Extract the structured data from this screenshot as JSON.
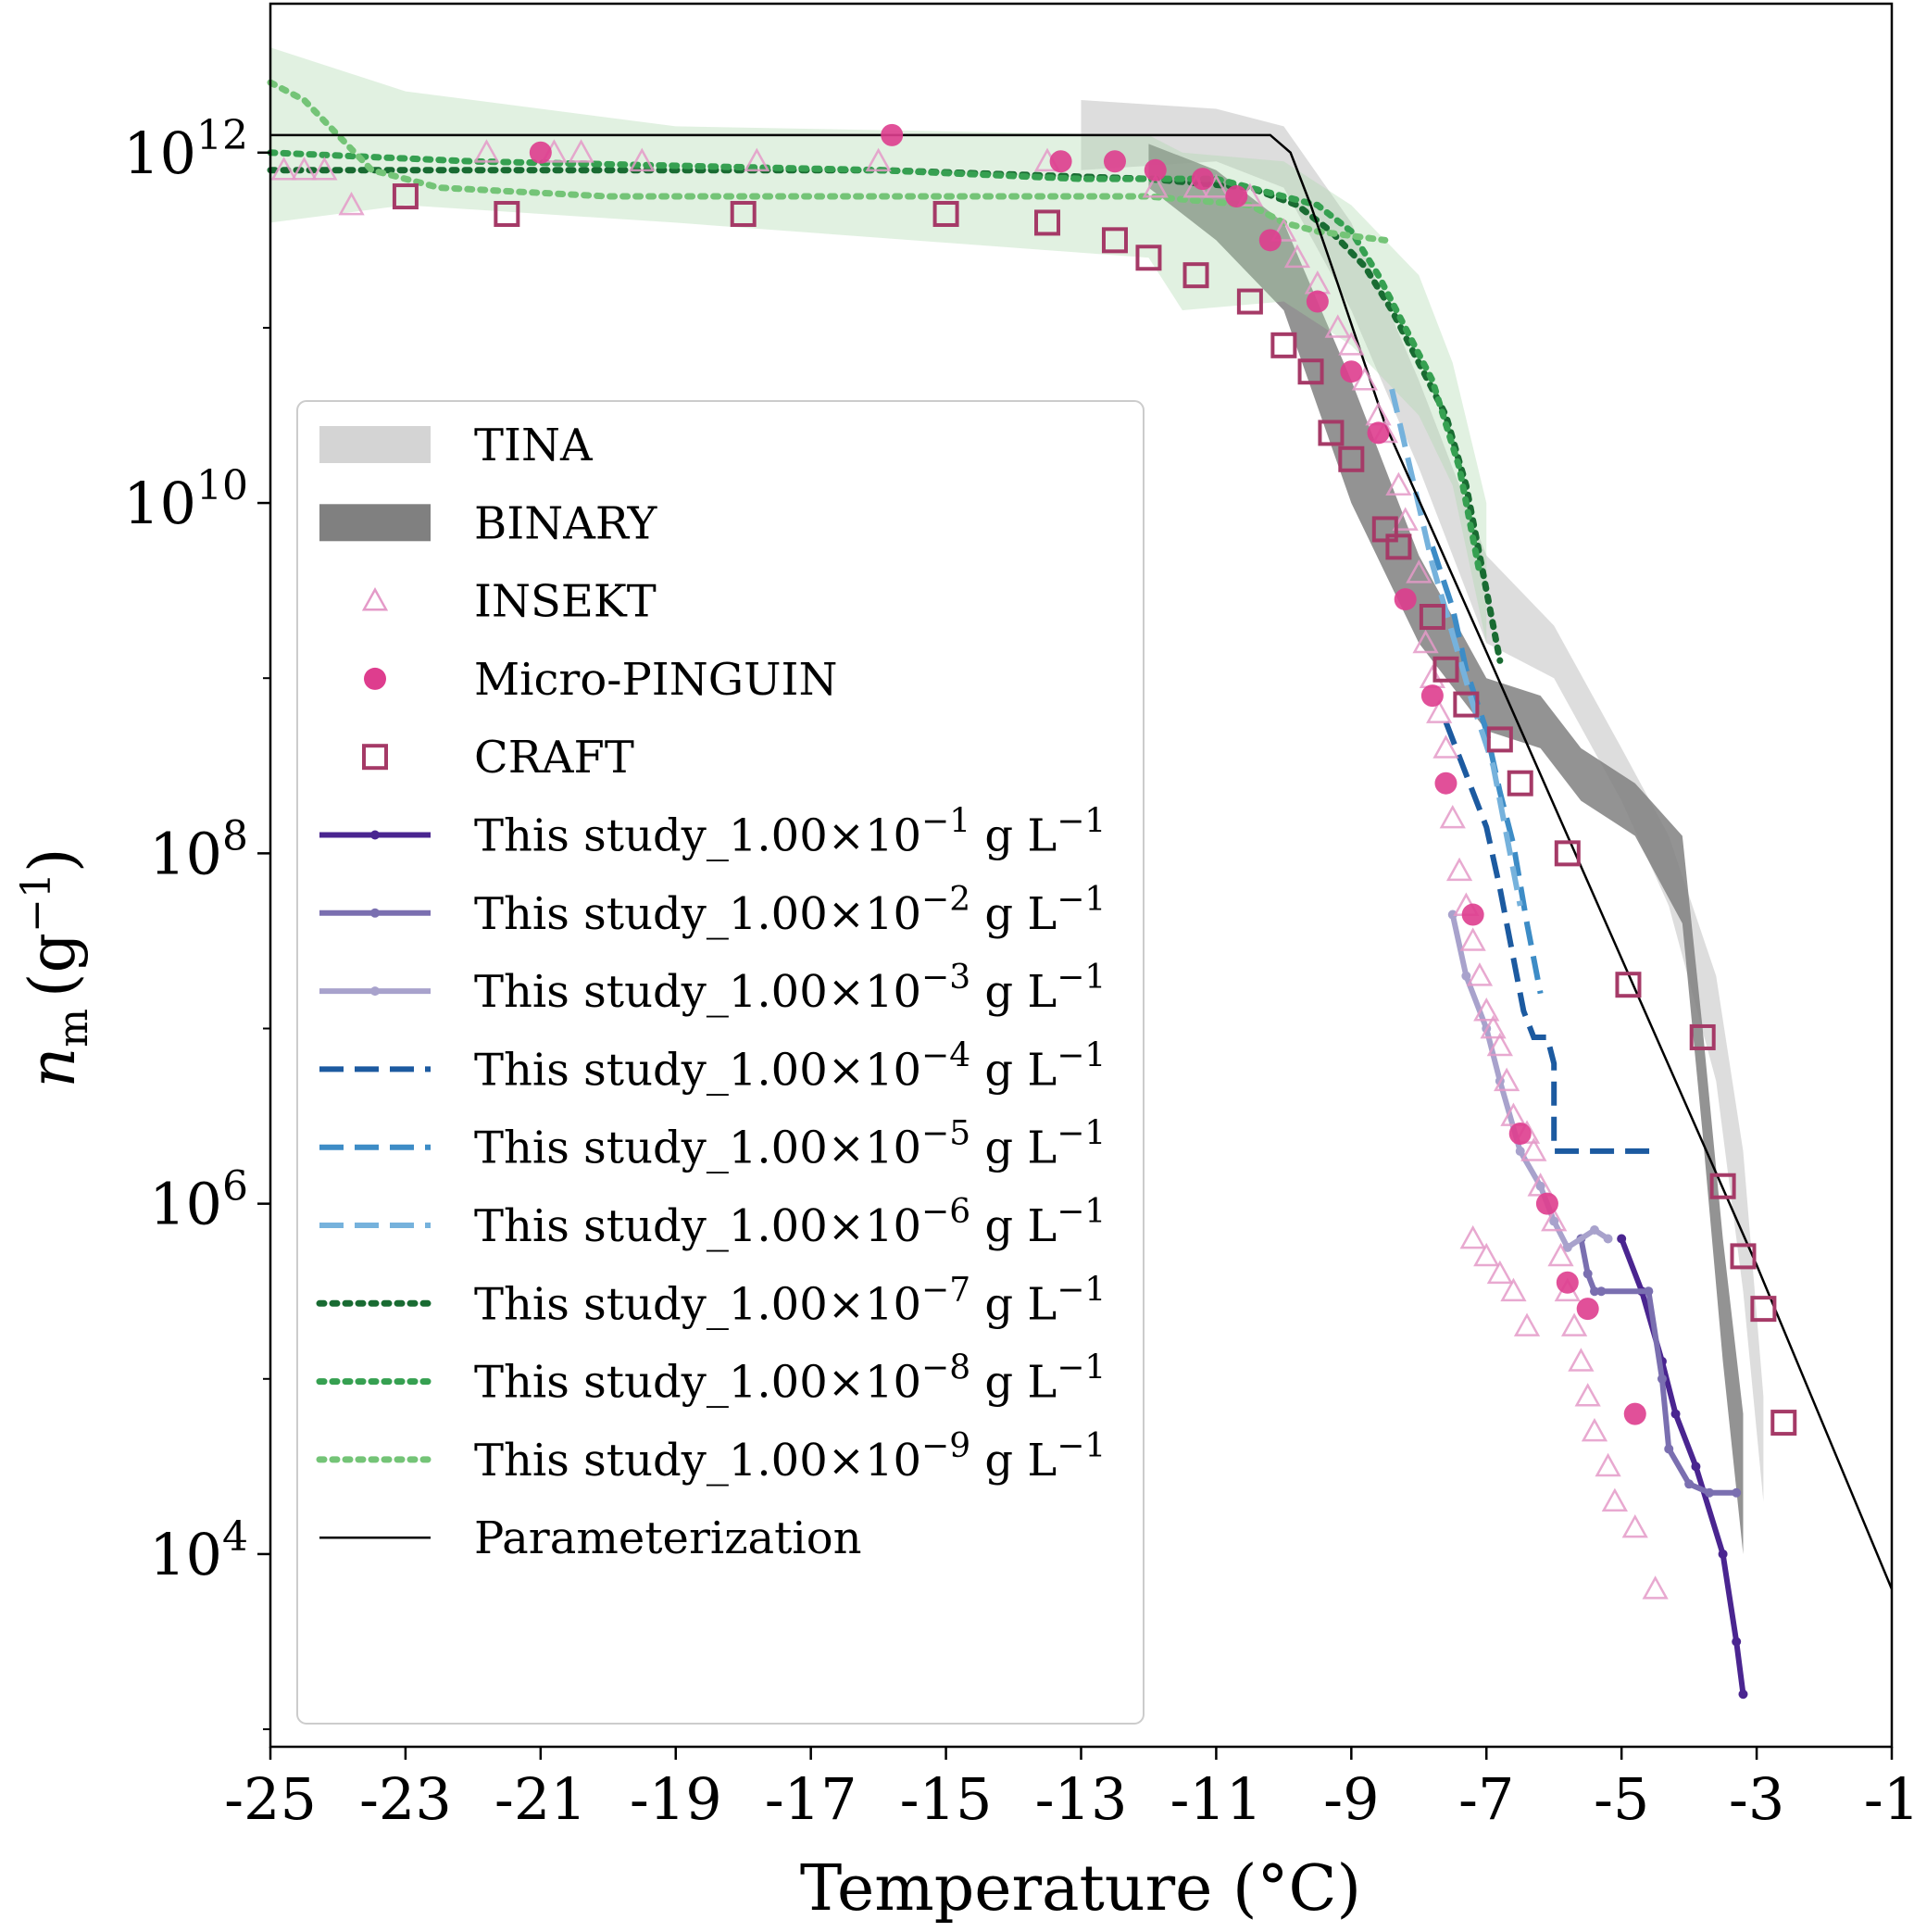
{
  "chart_data": {
    "type": "scatter",
    "xlabel": "Temperature (°C)",
    "ylabel": {
      "main": "n",
      "sub": "m",
      "unit_base": "(g",
      "unit_exp": "−1",
      "unit_close": ")"
    },
    "x_ticks": [
      "-25",
      "-23",
      "-21",
      "-19",
      "-17",
      "-15",
      "-13",
      "-11",
      "-9",
      "-7",
      "-5",
      "-3",
      "-1"
    ],
    "y_ticks": [
      {
        "base": "10",
        "exp": "4",
        "value": 4
      },
      {
        "base": "10",
        "exp": "6",
        "value": 6
      },
      {
        "base": "10",
        "exp": "8",
        "value": 8
      },
      {
        "base": "10",
        "exp": "10",
        "value": 10
      },
      {
        "base": "10",
        "exp": "12",
        "value": 12
      }
    ],
    "xlim": [
      -25,
      -1
    ],
    "ylim_log10": [
      2.9,
      12.85
    ],
    "y_scale": "log",
    "grid": false,
    "legend_position": "center-left",
    "legend": [
      {
        "label": "TINA",
        "key": "tina",
        "kind": "band",
        "color": "#d4d4d4"
      },
      {
        "label": "BINARY",
        "key": "binary",
        "kind": "band",
        "color": "#808080"
      },
      {
        "label": "INSEKT",
        "key": "insekt",
        "kind": "triangle",
        "color": "#e49ac8"
      },
      {
        "label": "Micro-PINGUIN",
        "key": "pinguin",
        "kind": "circle",
        "color": "#de3d8e"
      },
      {
        "label": "CRAFT",
        "key": "craft",
        "kind": "square",
        "color": "#a53a67"
      },
      {
        "label": "This study_1.00×10",
        "exp": "−1",
        "unit": " g L",
        "unit_exp": "−1",
        "key": "s1",
        "kind": "solid-dot",
        "color": "#4a2590"
      },
      {
        "label": "This study_1.00×10",
        "exp": "−2",
        "unit": " g L",
        "unit_exp": "−1",
        "key": "s2",
        "kind": "solid-dot",
        "color": "#7a6fb0"
      },
      {
        "label": "This study_1.00×10",
        "exp": "−3",
        "unit": " g L",
        "unit_exp": "−1",
        "key": "s3",
        "kind": "solid-dot",
        "color": "#a8a2cc"
      },
      {
        "label": "This study_1.00×10",
        "exp": "−4",
        "unit": " g L",
        "unit_exp": "−1",
        "key": "s4",
        "kind": "dashed",
        "color": "#1c5aa0"
      },
      {
        "label": "This study_1.00×10",
        "exp": "−5",
        "unit": " g L",
        "unit_exp": "−1",
        "key": "s5",
        "kind": "dashed",
        "color": "#3d8cc6"
      },
      {
        "label": "This study_1.00×10",
        "exp": "−6",
        "unit": " g L",
        "unit_exp": "−1",
        "key": "s6",
        "kind": "dashed",
        "color": "#76b2dc"
      },
      {
        "label": "This study_1.00×10",
        "exp": "−7",
        "unit": " g L",
        "unit_exp": "−1",
        "key": "s7",
        "kind": "dotted",
        "color": "#196b32"
      },
      {
        "label": "This study_1.00×10",
        "exp": "−8",
        "unit": " g L",
        "unit_exp": "−1",
        "key": "s8",
        "kind": "dotted",
        "color": "#36a051"
      },
      {
        "label": "This study_1.00×10",
        "exp": "−9",
        "unit": " g L",
        "unit_exp": "−1",
        "key": "s9",
        "kind": "dotted",
        "color": "#74c477"
      },
      {
        "label": "Parameterization",
        "key": "param",
        "kind": "line",
        "color": "#000000"
      }
    ],
    "bands": {
      "tina": [
        [
          -13.0,
          12.3,
          11.9
        ],
        [
          -11.0,
          12.25,
          11.95
        ],
        [
          -10.0,
          12.15,
          11.8
        ],
        [
          -9.0,
          11.6,
          11.1
        ],
        [
          -8.0,
          10.7,
          10.2
        ],
        [
          -7.0,
          9.7,
          9.2
        ],
        [
          -6.0,
          9.3,
          9.0
        ],
        [
          -5.0,
          8.6,
          8.3
        ],
        [
          -4.3,
          8.1,
          7.7
        ],
        [
          -3.6,
          7.3,
          6.7
        ],
        [
          -3.2,
          6.3,
          5.5
        ],
        [
          -2.9,
          4.9,
          4.3
        ]
      ],
      "binary": [
        [
          -12.0,
          12.05,
          11.8
        ],
        [
          -11.0,
          11.9,
          11.5
        ],
        [
          -10.0,
          11.6,
          11.1
        ],
        [
          -9.0,
          10.7,
          10.0
        ],
        [
          -8.0,
          9.7,
          9.2
        ],
        [
          -7.0,
          9.0,
          8.7
        ],
        [
          -6.2,
          8.9,
          8.6
        ],
        [
          -5.6,
          8.6,
          8.3
        ],
        [
          -4.8,
          8.4,
          8.1
        ],
        [
          -4.1,
          8.1,
          7.6
        ],
        [
          -3.8,
          7.0,
          6.4
        ],
        [
          -3.5,
          5.8,
          5.1
        ],
        [
          -3.2,
          4.8,
          4.0
        ]
      ],
      "green": [
        [
          -25.0,
          12.6,
          11.6
        ],
        [
          -23.0,
          12.35,
          11.7
        ],
        [
          -19.0,
          12.15,
          11.6
        ],
        [
          -12.0,
          12.1,
          11.4
        ],
        [
          -11.5,
          12.0,
          11.1
        ],
        [
          -10.0,
          11.95,
          11.15
        ],
        [
          -9.0,
          11.7,
          10.9
        ],
        [
          -8.0,
          11.3,
          10.5
        ],
        [
          -7.5,
          10.8,
          10.1
        ],
        [
          -7.0,
          10.0,
          9.2
        ]
      ]
    },
    "insekt": [
      [
        -24.8,
        11.9
      ],
      [
        -24.5,
        11.9
      ],
      [
        -24.2,
        11.9
      ],
      [
        -23.8,
        11.7
      ],
      [
        -21.8,
        12.0
      ],
      [
        -20.8,
        12.0
      ],
      [
        -20.4,
        12.0
      ],
      [
        -19.5,
        11.95
      ],
      [
        -17.8,
        11.95
      ],
      [
        -16.0,
        11.95
      ],
      [
        -13.5,
        11.95
      ],
      [
        -11.9,
        11.8
      ],
      [
        -11.3,
        11.8
      ],
      [
        -11.0,
        11.8
      ],
      [
        -10.5,
        11.75
      ],
      [
        -10.0,
        11.55
      ],
      [
        -9.8,
        11.4
      ],
      [
        -9.5,
        11.25
      ],
      [
        -9.2,
        11.0
      ],
      [
        -9.0,
        10.9
      ],
      [
        -8.8,
        10.7
      ],
      [
        -8.6,
        10.5
      ],
      [
        -8.5,
        10.4
      ],
      [
        -8.3,
        10.1
      ],
      [
        -8.2,
        9.9
      ],
      [
        -8.0,
        9.6
      ],
      [
        -7.9,
        9.2
      ],
      [
        -7.8,
        9.0
      ],
      [
        -7.7,
        8.8
      ],
      [
        -7.6,
        8.6
      ],
      [
        -7.5,
        8.2
      ],
      [
        -7.4,
        7.9
      ],
      [
        -7.3,
        7.7
      ],
      [
        -7.2,
        7.5
      ],
      [
        -7.1,
        7.3
      ],
      [
        -7.0,
        7.1
      ],
      [
        -6.9,
        7.0
      ],
      [
        -6.8,
        6.9
      ],
      [
        -6.7,
        6.7
      ],
      [
        -6.6,
        6.5
      ],
      [
        -6.4,
        6.4
      ],
      [
        -6.3,
        6.3
      ],
      [
        -6.2,
        6.1
      ],
      [
        -6.0,
        5.9
      ],
      [
        -5.9,
        5.7
      ],
      [
        -5.8,
        5.5
      ],
      [
        -5.7,
        5.3
      ],
      [
        -5.6,
        5.1
      ],
      [
        -5.5,
        4.9
      ],
      [
        -5.4,
        4.7
      ],
      [
        -5.2,
        4.5
      ],
      [
        -5.1,
        4.3
      ],
      [
        -4.8,
        4.15
      ],
      [
        -4.5,
        3.8
      ],
      [
        -7.2,
        5.8
      ],
      [
        -7.0,
        5.7
      ],
      [
        -6.8,
        5.6
      ],
      [
        -6.6,
        5.5
      ],
      [
        -6.4,
        5.3
      ]
    ],
    "pinguin": [
      [
        -21.0,
        12.0
      ],
      [
        -15.8,
        12.1
      ],
      [
        -13.3,
        11.95
      ],
      [
        -12.5,
        11.95
      ],
      [
        -11.9,
        11.9
      ],
      [
        -11.2,
        11.85
      ],
      [
        -10.7,
        11.75
      ],
      [
        -10.2,
        11.5
      ],
      [
        -9.5,
        11.15
      ],
      [
        -9.0,
        10.75
      ],
      [
        -8.6,
        10.4
      ],
      [
        -8.2,
        9.45
      ],
      [
        -7.8,
        8.9
      ],
      [
        -7.6,
        8.4
      ],
      [
        -7.2,
        7.65
      ],
      [
        -6.5,
        6.4
      ],
      [
        -6.1,
        6.0
      ],
      [
        -5.8,
        5.55
      ],
      [
        -5.5,
        5.4
      ],
      [
        -4.8,
        4.8
      ]
    ],
    "craft": [
      [
        -23.0,
        11.75
      ],
      [
        -21.5,
        11.65
      ],
      [
        -18.0,
        11.65
      ],
      [
        -15.0,
        11.65
      ],
      [
        -13.5,
        11.6
      ],
      [
        -12.5,
        11.5
      ],
      [
        -12.0,
        11.4
      ],
      [
        -11.3,
        11.3
      ],
      [
        -10.5,
        11.15
      ],
      [
        -10.0,
        10.9
      ],
      [
        -9.6,
        10.75
      ],
      [
        -9.3,
        10.4
      ],
      [
        -9.0,
        10.25
      ],
      [
        -8.5,
        9.85
      ],
      [
        -8.3,
        9.75
      ],
      [
        -7.8,
        9.35
      ],
      [
        -7.6,
        9.05
      ],
      [
        -7.3,
        8.85
      ],
      [
        -6.8,
        8.65
      ],
      [
        -6.5,
        8.4
      ],
      [
        -5.8,
        8.0
      ],
      [
        -4.9,
        7.25
      ],
      [
        -3.8,
        6.95
      ],
      [
        -3.5,
        6.1
      ],
      [
        -3.2,
        5.7
      ],
      [
        -2.9,
        5.4
      ],
      [
        -2.6,
        4.75
      ]
    ],
    "series": [
      {
        "key": "s1",
        "points": [
          [
            -5.0,
            5.8
          ],
          [
            -4.7,
            5.5
          ],
          [
            -4.4,
            5.1
          ],
          [
            -4.2,
            4.8
          ],
          [
            -3.9,
            4.5
          ],
          [
            -3.5,
            4.0
          ],
          [
            -3.3,
            3.5
          ],
          [
            -3.2,
            3.2
          ]
        ]
      },
      {
        "key": "s2",
        "points": [
          [
            -5.6,
            5.8
          ],
          [
            -5.5,
            5.6
          ],
          [
            -5.4,
            5.5
          ],
          [
            -5.3,
            5.5
          ],
          [
            -4.6,
            5.5
          ],
          [
            -4.4,
            5.0
          ],
          [
            -4.3,
            4.6
          ],
          [
            -4.0,
            4.4
          ],
          [
            -3.7,
            4.35
          ],
          [
            -3.3,
            4.35
          ]
        ]
      },
      {
        "key": "s3",
        "points": [
          [
            -7.5,
            7.65
          ],
          [
            -7.3,
            7.3
          ],
          [
            -7.0,
            7.0
          ],
          [
            -6.8,
            6.7
          ],
          [
            -6.5,
            6.3
          ],
          [
            -6.2,
            6.1
          ],
          [
            -6.0,
            5.9
          ],
          [
            -5.8,
            5.75
          ],
          [
            -5.4,
            5.85
          ],
          [
            -5.2,
            5.8
          ]
        ]
      },
      {
        "key": "s4",
        "points": [
          [
            -7.6,
            8.75
          ],
          [
            -7.3,
            8.45
          ],
          [
            -7.0,
            8.15
          ],
          [
            -6.8,
            7.8
          ],
          [
            -6.6,
            7.4
          ],
          [
            -6.45,
            7.1
          ],
          [
            -6.3,
            6.95
          ],
          [
            -6.1,
            6.95
          ],
          [
            -6.0,
            6.8
          ],
          [
            -6.0,
            6.3
          ],
          [
            -5.8,
            6.3
          ],
          [
            -4.5,
            6.3
          ]
        ]
      },
      {
        "key": "s5",
        "points": [
          [
            -7.8,
            9.75
          ],
          [
            -7.5,
            9.4
          ],
          [
            -7.3,
            9.05
          ],
          [
            -7.0,
            8.7
          ],
          [
            -6.8,
            8.35
          ],
          [
            -6.6,
            8.05
          ],
          [
            -6.4,
            7.6
          ],
          [
            -6.2,
            7.2
          ]
        ]
      },
      {
        "key": "s6",
        "points": [
          [
            -8.4,
            10.65
          ],
          [
            -8.1,
            10.15
          ],
          [
            -7.8,
            9.65
          ],
          [
            -7.5,
            9.25
          ],
          [
            -7.2,
            8.85
          ],
          [
            -6.9,
            8.5
          ],
          [
            -6.7,
            8.1
          ],
          [
            -6.5,
            7.7
          ]
        ]
      },
      {
        "key": "s7",
        "points": [
          [
            -25.0,
            11.9
          ],
          [
            -16.0,
            11.9
          ],
          [
            -12.0,
            11.85
          ],
          [
            -10.5,
            11.8
          ],
          [
            -9.8,
            11.7
          ],
          [
            -9.3,
            11.55
          ],
          [
            -8.8,
            11.35
          ],
          [
            -8.4,
            11.1
          ],
          [
            -8.0,
            10.8
          ],
          [
            -7.6,
            10.5
          ],
          [
            -7.3,
            10.1
          ],
          [
            -7.1,
            9.7
          ],
          [
            -6.8,
            9.1
          ]
        ]
      },
      {
        "key": "s8",
        "points": [
          [
            -25.0,
            12.0
          ],
          [
            -22.0,
            11.95
          ],
          [
            -16.0,
            11.9
          ],
          [
            -13.0,
            11.85
          ],
          [
            -11.0,
            11.85
          ],
          [
            -10.0,
            11.75
          ],
          [
            -9.5,
            11.7
          ],
          [
            -9.0,
            11.55
          ],
          [
            -8.6,
            11.3
          ],
          [
            -8.2,
            11.0
          ],
          [
            -7.8,
            10.7
          ],
          [
            -7.4,
            10.2
          ],
          [
            -7.1,
            9.6
          ]
        ]
      },
      {
        "key": "s9",
        "points": [
          [
            -25.0,
            12.4
          ],
          [
            -24.5,
            12.3
          ],
          [
            -24.0,
            12.1
          ],
          [
            -23.5,
            11.9
          ],
          [
            -22.5,
            11.8
          ],
          [
            -20.0,
            11.75
          ],
          [
            -16.0,
            11.75
          ],
          [
            -12.0,
            11.75
          ],
          [
            -10.5,
            11.7
          ],
          [
            -10.0,
            11.6
          ],
          [
            -9.5,
            11.55
          ],
          [
            -8.5,
            11.5
          ]
        ]
      }
    ],
    "parameterization": [
      [
        -25.0,
        12.1
      ],
      [
        -10.2,
        12.1
      ],
      [
        -9.9,
        12.0
      ],
      [
        -9.6,
        11.7
      ],
      [
        -9.2,
        11.25
      ],
      [
        -8.5,
        10.45
      ],
      [
        -7.0,
        9.15
      ],
      [
        -5.0,
        7.4
      ],
      [
        -3.0,
        5.65
      ],
      [
        -1.0,
        3.8
      ]
    ]
  }
}
